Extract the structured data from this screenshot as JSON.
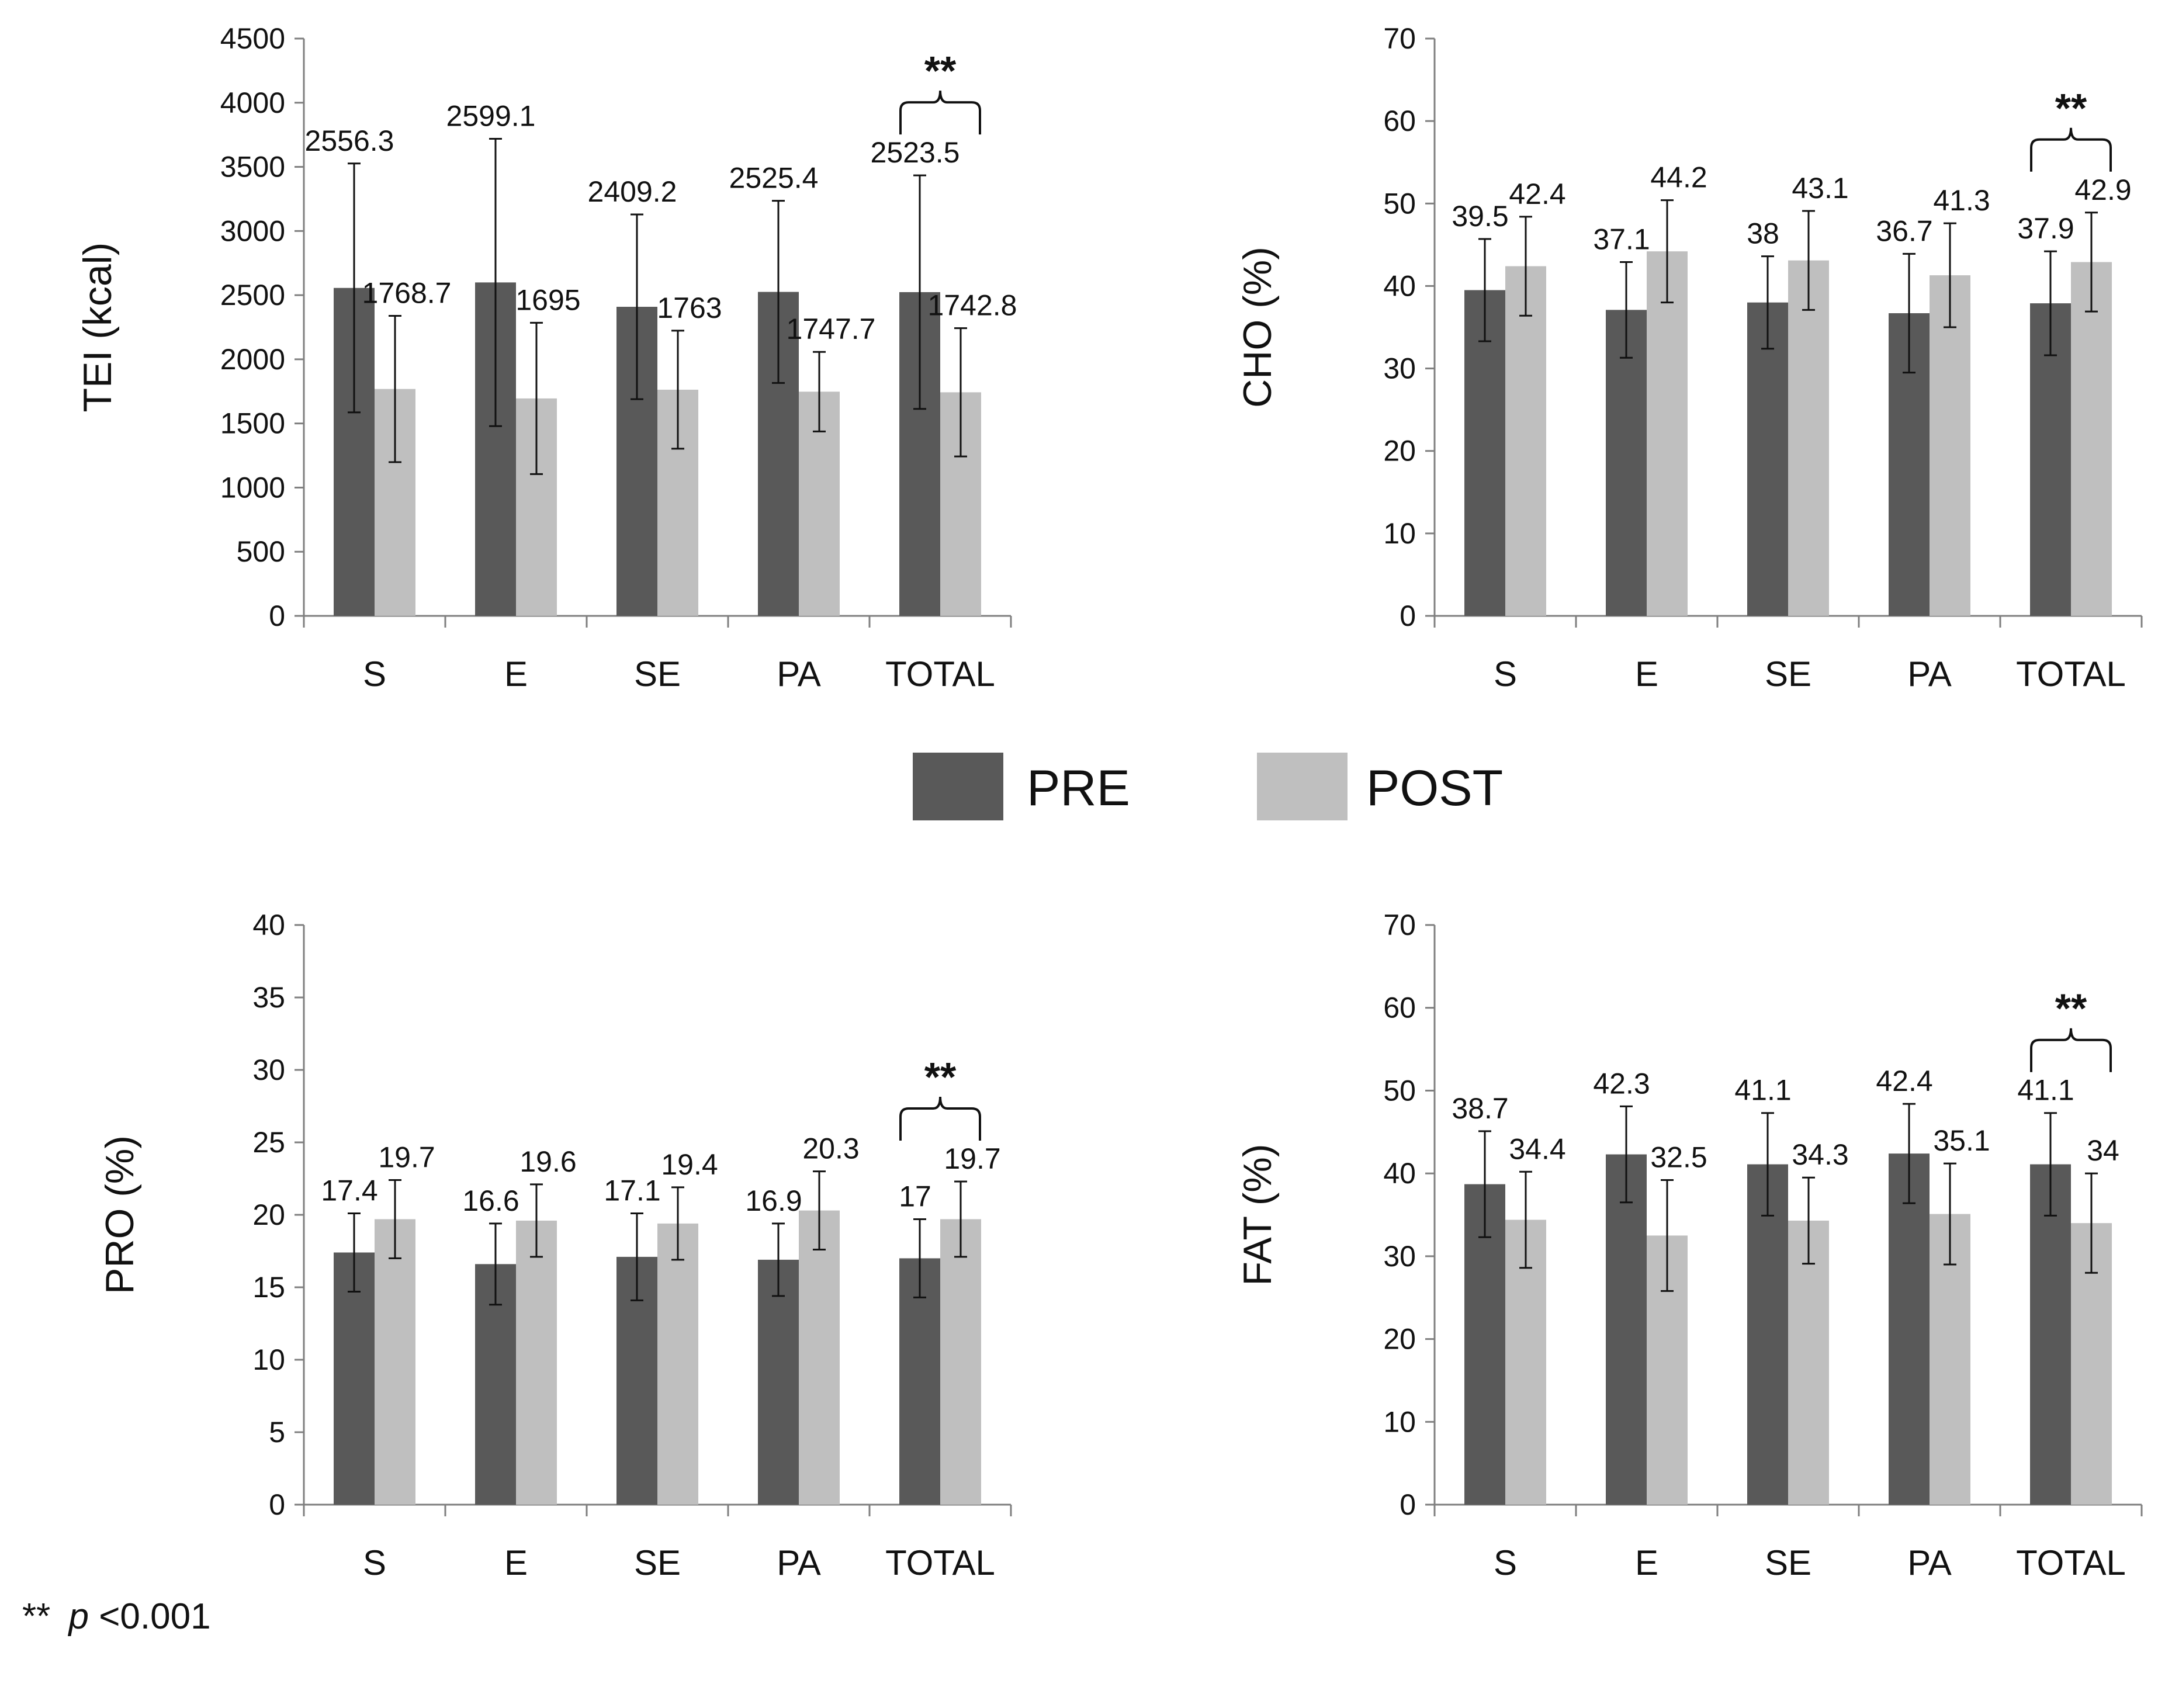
{
  "legend": {
    "pre_label": "PRE",
    "post_label": "POST",
    "pre_color": "#595959",
    "post_color": "#bfbfbf"
  },
  "footnote": {
    "stars": "**",
    "p_symbol": "p",
    "threshold": "<0.001"
  },
  "chart_data": [
    {
      "type": "bar",
      "id": "tei",
      "ylabel": "TEI (kcal)",
      "ylim": [
        0,
        4500
      ],
      "ytick_step": 500,
      "categories": [
        "S",
        "E",
        "SE",
        "PA",
        "TOTAL"
      ],
      "series": [
        {
          "name": "PRE",
          "values": [
            2556.3,
            2599.1,
            2409.2,
            2525.4,
            2523.5
          ],
          "errors": [
            970,
            1120,
            720,
            710,
            910
          ]
        },
        {
          "name": "POST",
          "values": [
            1768.7,
            1695,
            1763,
            1747.7,
            1742.8
          ],
          "errors": [
            570,
            590,
            460,
            310,
            500
          ]
        }
      ],
      "labels": {
        "PRE": [
          "2556.3",
          "2599.1",
          "2409.2",
          "2525.4",
          "2523.5"
        ],
        "POST": [
          "1768.7",
          "1695",
          "1763",
          "1747.7",
          "1742.8"
        ]
      },
      "significance": {
        "category": "TOTAL",
        "label": "**"
      }
    },
    {
      "type": "bar",
      "id": "cho",
      "ylabel": "CHO (%)",
      "ylim": [
        0,
        70
      ],
      "ytick_step": 10,
      "categories": [
        "S",
        "E",
        "SE",
        "PA",
        "TOTAL"
      ],
      "series": [
        {
          "name": "PRE",
          "values": [
            39.5,
            37.1,
            38,
            36.7,
            37.9
          ],
          "errors": [
            6.2,
            5.8,
            5.6,
            7.2,
            6.3
          ]
        },
        {
          "name": "POST",
          "values": [
            42.4,
            44.2,
            43.1,
            41.3,
            42.9
          ],
          "errors": [
            6.0,
            6.2,
            6.0,
            6.3,
            6.0
          ]
        }
      ],
      "labels": {
        "PRE": [
          "39.5",
          "37.1",
          "38",
          "36.7",
          "37.9"
        ],
        "POST": [
          "42.4",
          "44.2",
          "43.1",
          "41.3",
          "42.9"
        ]
      },
      "significance": {
        "category": "TOTAL",
        "label": "**"
      }
    },
    {
      "type": "bar",
      "id": "pro",
      "ylabel": "PRO (%)",
      "ylim": [
        0,
        40
      ],
      "ytick_step": 5,
      "categories": [
        "S",
        "E",
        "SE",
        "PA",
        "TOTAL"
      ],
      "series": [
        {
          "name": "PRE",
          "values": [
            17.4,
            16.6,
            17.1,
            16.9,
            17
          ],
          "errors": [
            2.7,
            2.8,
            3.0,
            2.5,
            2.7
          ]
        },
        {
          "name": "POST",
          "values": [
            19.7,
            19.6,
            19.4,
            20.3,
            19.7
          ],
          "errors": [
            2.7,
            2.5,
            2.5,
            2.7,
            2.6
          ]
        }
      ],
      "labels": {
        "PRE": [
          "17.4",
          "16.6",
          "17.1",
          "16.9",
          "17"
        ],
        "POST": [
          "19.7",
          "19.6",
          "19.4",
          "20.3",
          "19.7"
        ]
      },
      "significance": {
        "category": "TOTAL",
        "label": "**"
      }
    },
    {
      "type": "bar",
      "id": "fat",
      "ylabel": "FAT (%)",
      "ylim": [
        0,
        70
      ],
      "ytick_step": 10,
      "categories": [
        "S",
        "E",
        "SE",
        "PA",
        "TOTAL"
      ],
      "series": [
        {
          "name": "PRE",
          "values": [
            38.7,
            42.3,
            41.1,
            42.4,
            41.1
          ],
          "errors": [
            6.4,
            5.8,
            6.2,
            6.0,
            6.2
          ]
        },
        {
          "name": "POST",
          "values": [
            34.4,
            32.5,
            34.3,
            35.1,
            34
          ],
          "errors": [
            5.8,
            6.7,
            5.2,
            6.1,
            6.0
          ]
        }
      ],
      "labels": {
        "PRE": [
          "38.7",
          "42.3",
          "41.1",
          "42.4",
          "41.1"
        ],
        "POST": [
          "34.4",
          "32.5",
          "34.3",
          "35.1",
          "34"
        ]
      },
      "significance": {
        "category": "TOTAL",
        "label": "**"
      }
    }
  ]
}
